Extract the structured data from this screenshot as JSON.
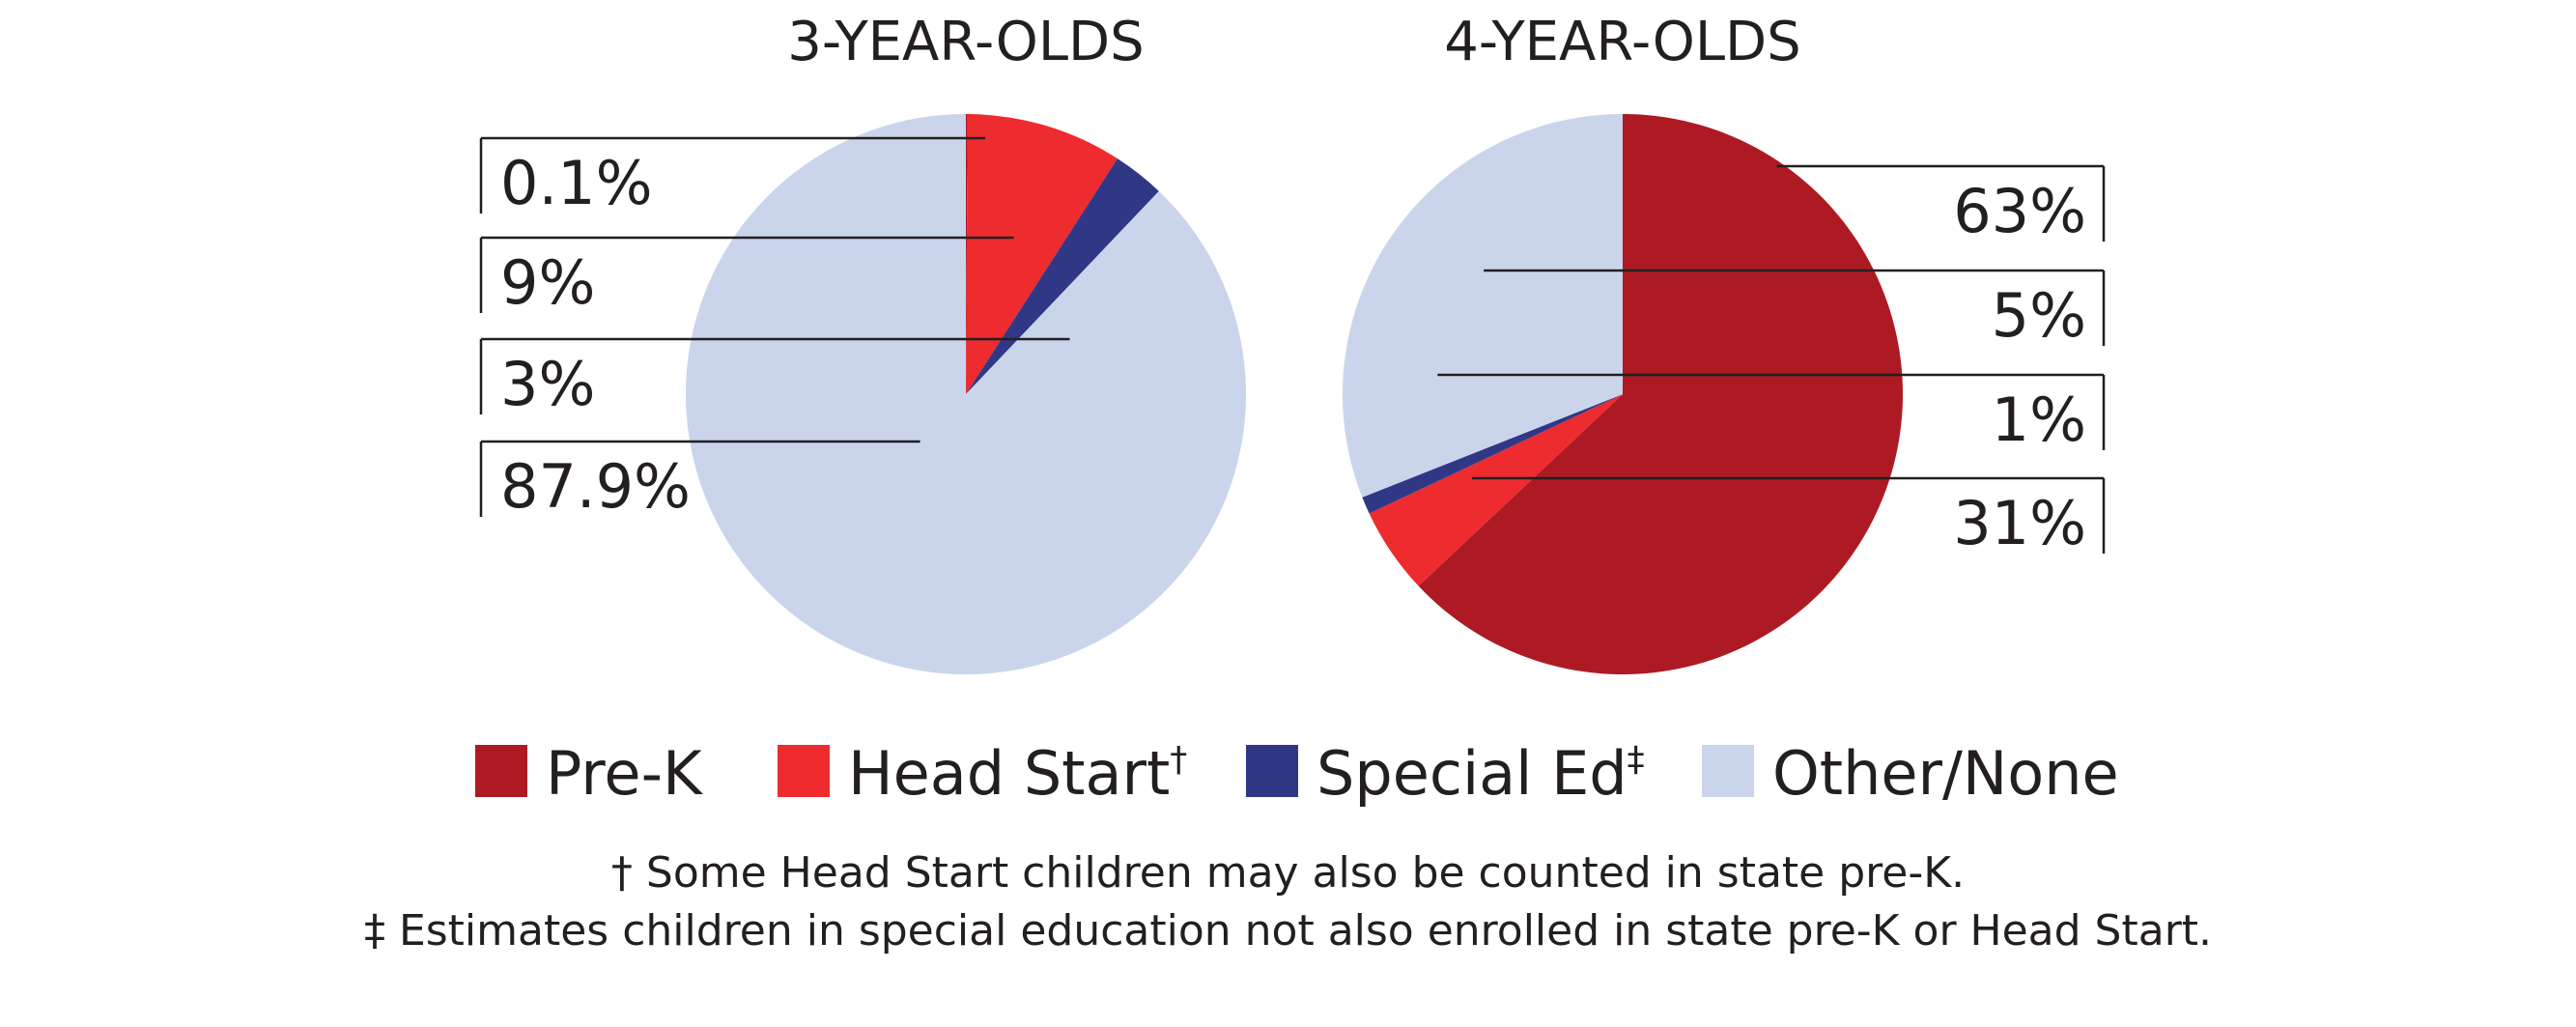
{
  "chart_data": [
    {
      "type": "pie",
      "title": "3-YEAR-OLDS",
      "slices": [
        {
          "category": "Pre-K",
          "value": 0.1,
          "label": "0.1%"
        },
        {
          "category": "Head Start",
          "value": 9,
          "label": "9%"
        },
        {
          "category": "Special Ed",
          "value": 3,
          "label": "3%"
        },
        {
          "category": "Other/None",
          "value": 87.9,
          "label": "87.9%"
        }
      ],
      "label_side": "left"
    },
    {
      "type": "pie",
      "title": "4-YEAR-OLDS",
      "slices": [
        {
          "category": "Pre-K",
          "value": 63,
          "label": "63%"
        },
        {
          "category": "Head Start",
          "value": 5,
          "label": "5%"
        },
        {
          "category": "Special Ed",
          "value": 1,
          "label": "1%"
        },
        {
          "category": "Other/None",
          "value": 31,
          "label": "31%"
        }
      ],
      "label_side": "right"
    }
  ],
  "legend": {
    "placement": "bottom",
    "items": [
      {
        "label": "Pre-K",
        "marker": "",
        "color": "#ad1a23"
      },
      {
        "label": "Head Start",
        "marker": "†",
        "color": "#ee2b2f"
      },
      {
        "label": "Special Ed",
        "marker": "‡",
        "color": "#303886"
      },
      {
        "label": "Other/None",
        "marker": "",
        "color": "#cad5ec"
      }
    ]
  },
  "footnotes": [
    "† Some Head Start children may also be counted in state pre-K.",
    "‡ Estimates children in special education not also enrolled in state pre-K or Head Start."
  ]
}
